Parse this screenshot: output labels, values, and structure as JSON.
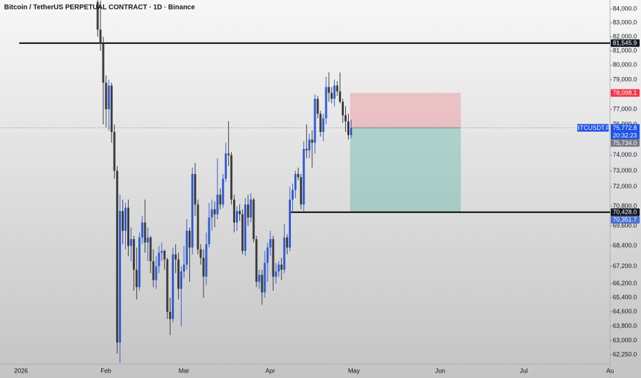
{
  "chart_data": {
    "type": "candlestick",
    "title": "Bitcoin / TetherUS PERPETUAL CONTRACT · 1D · Binance",
    "log_scale": true,
    "up_color": "#2f5bd3",
    "down_color": "#3b3b3b",
    "ylim": [
      61730,
      84650
    ],
    "yticks": [
      {
        "value": 84000,
        "label": "84,000.0"
      },
      {
        "value": 83000,
        "label": "83,000.0"
      },
      {
        "value": 82000,
        "label": "82,000.0"
      },
      {
        "value": 81000,
        "label": "81,000.0"
      },
      {
        "value": 80000,
        "label": "80,000.0"
      },
      {
        "value": 79000,
        "label": "79,000.0"
      },
      {
        "value": 77000,
        "label": "77,000.0"
      },
      {
        "value": 76000,
        "label": "76,000.0"
      },
      {
        "value": 74000,
        "label": "74,000.0"
      },
      {
        "value": 73000,
        "label": "73,000.0"
      },
      {
        "value": 72000,
        "label": "72,000.0"
      },
      {
        "value": 70800,
        "label": "70,800.0"
      },
      {
        "value": 69600,
        "label": "69,600.0"
      },
      {
        "value": 68400,
        "label": "68,400.0"
      },
      {
        "value": 67200,
        "label": "67,200.0"
      },
      {
        "value": 66200,
        "label": "66,200.0"
      },
      {
        "value": 65400,
        "label": "65,400.0"
      },
      {
        "value": 64600,
        "label": "64,600.0"
      },
      {
        "value": 63800,
        "label": "63,800.0"
      },
      {
        "value": 63000,
        "label": "63,000.0"
      },
      {
        "value": 62250,
        "label": "62,250.0"
      }
    ],
    "x_labels": [
      "2026",
      "Feb",
      "Mar",
      "Apr",
      "May",
      "Jun",
      "Jul",
      "Au"
    ],
    "open": [
      84500,
      82500,
      81500,
      78800,
      77000,
      78600,
      75500,
      73000,
      62900,
      70500,
      69300,
      70700,
      68400,
      68800,
      67000,
      66000,
      68900,
      69800,
      68600,
      68900,
      67500,
      66400,
      67200,
      68000,
      68100,
      67600,
      64600,
      64200,
      67900,
      67600,
      65900,
      66900,
      67300,
      69300,
      68300,
      72800,
      70900,
      68200,
      67700,
      66600,
      68500,
      70100,
      70600,
      70300,
      71500,
      70900,
      72500,
      74100,
      74000,
      71200,
      69800,
      70500,
      70300,
      68100,
      70900,
      70100,
      71200,
      68800,
      66300,
      66700,
      65700,
      67400,
      68300,
      68800,
      66600,
      66900,
      67300,
      67000,
      68900,
      68300,
      71200,
      71800,
      72800,
      72600,
      70900,
      74400,
      74300,
      75000,
      74800,
      77700,
      76700,
      75500,
      76400,
      78500,
      78100,
      77700,
      78600,
      78200,
      77500,
      76600,
      76200,
      75300
    ],
    "high": [
      85500,
      84600,
      82000,
      79300,
      79000,
      78800,
      76000,
      73300,
      71500,
      71200,
      71000,
      71200,
      69500,
      69000,
      68300,
      69200,
      70200,
      71200,
      69500,
      69000,
      68200,
      67800,
      68400,
      68600,
      68200,
      67700,
      65400,
      68300,
      68500,
      68000,
      67200,
      68400,
      70000,
      69500,
      73200,
      73500,
      71200,
      68500,
      68200,
      69200,
      71000,
      71200,
      71100,
      73800,
      71900,
      72800,
      74800,
      76200,
      74200,
      71500,
      70800,
      70900,
      70600,
      71300,
      71500,
      71600,
      71300,
      69000,
      67000,
      67000,
      68100,
      68600,
      69300,
      69000,
      67400,
      67500,
      67700,
      69700,
      69100,
      72000,
      72200,
      73000,
      73200,
      72800,
      74900,
      76000,
      75400,
      75600,
      78000,
      77900,
      76900,
      76700,
      79200,
      79500,
      78500,
      79000,
      78900,
      79500,
      77700,
      77200,
      76700,
      76300
    ],
    "low": [
      82000,
      81000,
      76000,
      75800,
      75600,
      74800,
      72500,
      62300,
      61800,
      68500,
      68200,
      67800,
      67500,
      65800,
      65300,
      65800,
      68500,
      68000,
      67500,
      66800,
      66000,
      65900,
      66800,
      67500,
      67000,
      64200,
      63300,
      64000,
      66800,
      65300,
      63800,
      66500,
      67000,
      66300,
      67900,
      70200,
      67900,
      67300,
      65400,
      66100,
      68300,
      69300,
      69500,
      70000,
      70600,
      70700,
      72300,
      73300,
      70900,
      69200,
      69300,
      69900,
      67900,
      67800,
      69600,
      69800,
      68600,
      66000,
      65900,
      65000,
      65400,
      66300,
      67800,
      65800,
      66200,
      66600,
      66400,
      66800,
      67900,
      68100,
      70500,
      71300,
      72400,
      70600,
      70500,
      73800,
      73800,
      73200,
      74100,
      76400,
      75200,
      74900,
      76000,
      77500,
      77400,
      77200,
      77900,
      77400,
      76100,
      75500,
      75000,
      75100
    ],
    "close": [
      82500,
      81500,
      78800,
      77000,
      78600,
      75500,
      73000,
      62900,
      70500,
      69300,
      70700,
      68400,
      68800,
      67000,
      66000,
      68900,
      69800,
      68600,
      68900,
      67500,
      66400,
      67200,
      68000,
      68100,
      67600,
      64600,
      64200,
      67900,
      67600,
      65900,
      66900,
      67300,
      69300,
      68300,
      72800,
      70900,
      68200,
      67700,
      66600,
      68500,
      70100,
      70600,
      70300,
      71500,
      70900,
      72500,
      74100,
      74000,
      71200,
      69800,
      70500,
      70300,
      68100,
      70900,
      70100,
      71200,
      68800,
      66300,
      66700,
      65700,
      67400,
      68300,
      68800,
      66600,
      66900,
      67300,
      67000,
      68900,
      68300,
      71200,
      71800,
      72800,
      72600,
      70900,
      74400,
      74300,
      75000,
      74800,
      77700,
      76700,
      75500,
      76400,
      78500,
      78100,
      77700,
      78600,
      78200,
      77500,
      76600,
      76200,
      75300,
      75772.8
    ],
    "price_tags": [
      {
        "value": 81545.9,
        "label": "81,545.9",
        "color": "#131722"
      },
      {
        "value": 78098.1,
        "label": "78,098.1",
        "color": "#f23645"
      },
      {
        "value": 75772.8,
        "label": "75,772.8",
        "color": "#1e53e5",
        "symbol": "BTCUSDT.P",
        "countdown": "20:32:23"
      },
      {
        "value": 75734.0,
        "label": "75,734.0",
        "color": "#787b86"
      },
      {
        "value": 70428.0,
        "label": "70,428.0",
        "color": "#131722"
      },
      {
        "value": 70351.7,
        "label": "70,351.7",
        "color": "#4a6fd1"
      }
    ]
  }
}
